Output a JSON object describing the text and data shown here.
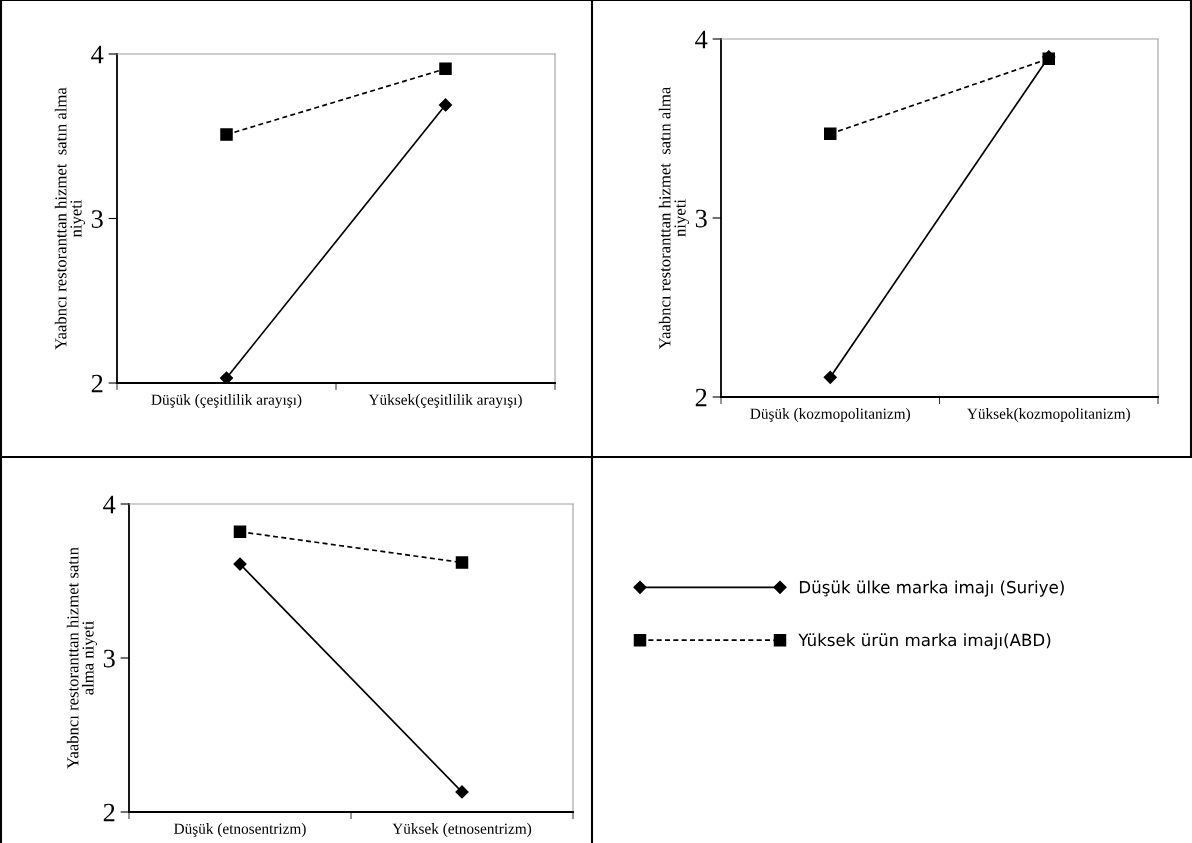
{
  "chart_data": [
    {
      "type": "line",
      "categories": [
        "Düşük (çeşitlilik arayışı)",
        "Yüksek(çeşitlilik arayışı)"
      ],
      "ylabel": "Yaabncı restoranttan hizmet  satın alma\nniyeti",
      "ylim": [
        2,
        4
      ],
      "yticks": [
        2,
        3,
        4
      ],
      "legend": "right",
      "series": [
        {
          "name": "Düşük ülke marka imajı (Suriye)",
          "color": "#000000",
          "values": [
            2.03,
            3.69
          ],
          "marker": "diamond",
          "line_style": "solid"
        },
        {
          "name": "Yüksek ürün marka imajı(ABD)",
          "color": "#000000",
          "values": [
            3.51,
            3.91
          ],
          "marker": "square",
          "line_style": "dashed"
        }
      ]
    },
    {
      "type": "line",
      "categories": [
        "Düşük (kozmopolitanizm)",
        "Yüksek(kozmopolitanizm)"
      ],
      "ylabel": "Yaabncı restoranttan hizmet  satın alma\nniyeti",
      "ylim": [
        2,
        4
      ],
      "yticks": [
        2,
        3,
        4
      ],
      "series": [
        {
          "color": "#000000",
          "values": [
            2.11,
            3.9
          ],
          "marker": "diamond",
          "line_style": "solid"
        },
        {
          "color": "#000000",
          "values": [
            3.47,
            3.89
          ],
          "marker": "square",
          "line_style": "dashed"
        }
      ]
    },
    {
      "type": "line",
      "categories": [
        "Düşük (etnosentrizm)",
        "Yüksek (etnosentrizm)"
      ],
      "ylabel": "Yaabncı restoranttan hizmet satın\nalma niyeti",
      "ylim": [
        2,
        4
      ],
      "yticks": [
        2,
        3,
        4
      ],
      "series": [
        {
          "color": "#000000",
          "values": [
            3.61,
            2.13
          ],
          "marker": "diamond",
          "line_style": "solid"
        },
        {
          "color": "#000000",
          "values": [
            3.82,
            3.62
          ],
          "marker": "square",
          "line_style": "dashed"
        }
      ]
    }
  ]
}
